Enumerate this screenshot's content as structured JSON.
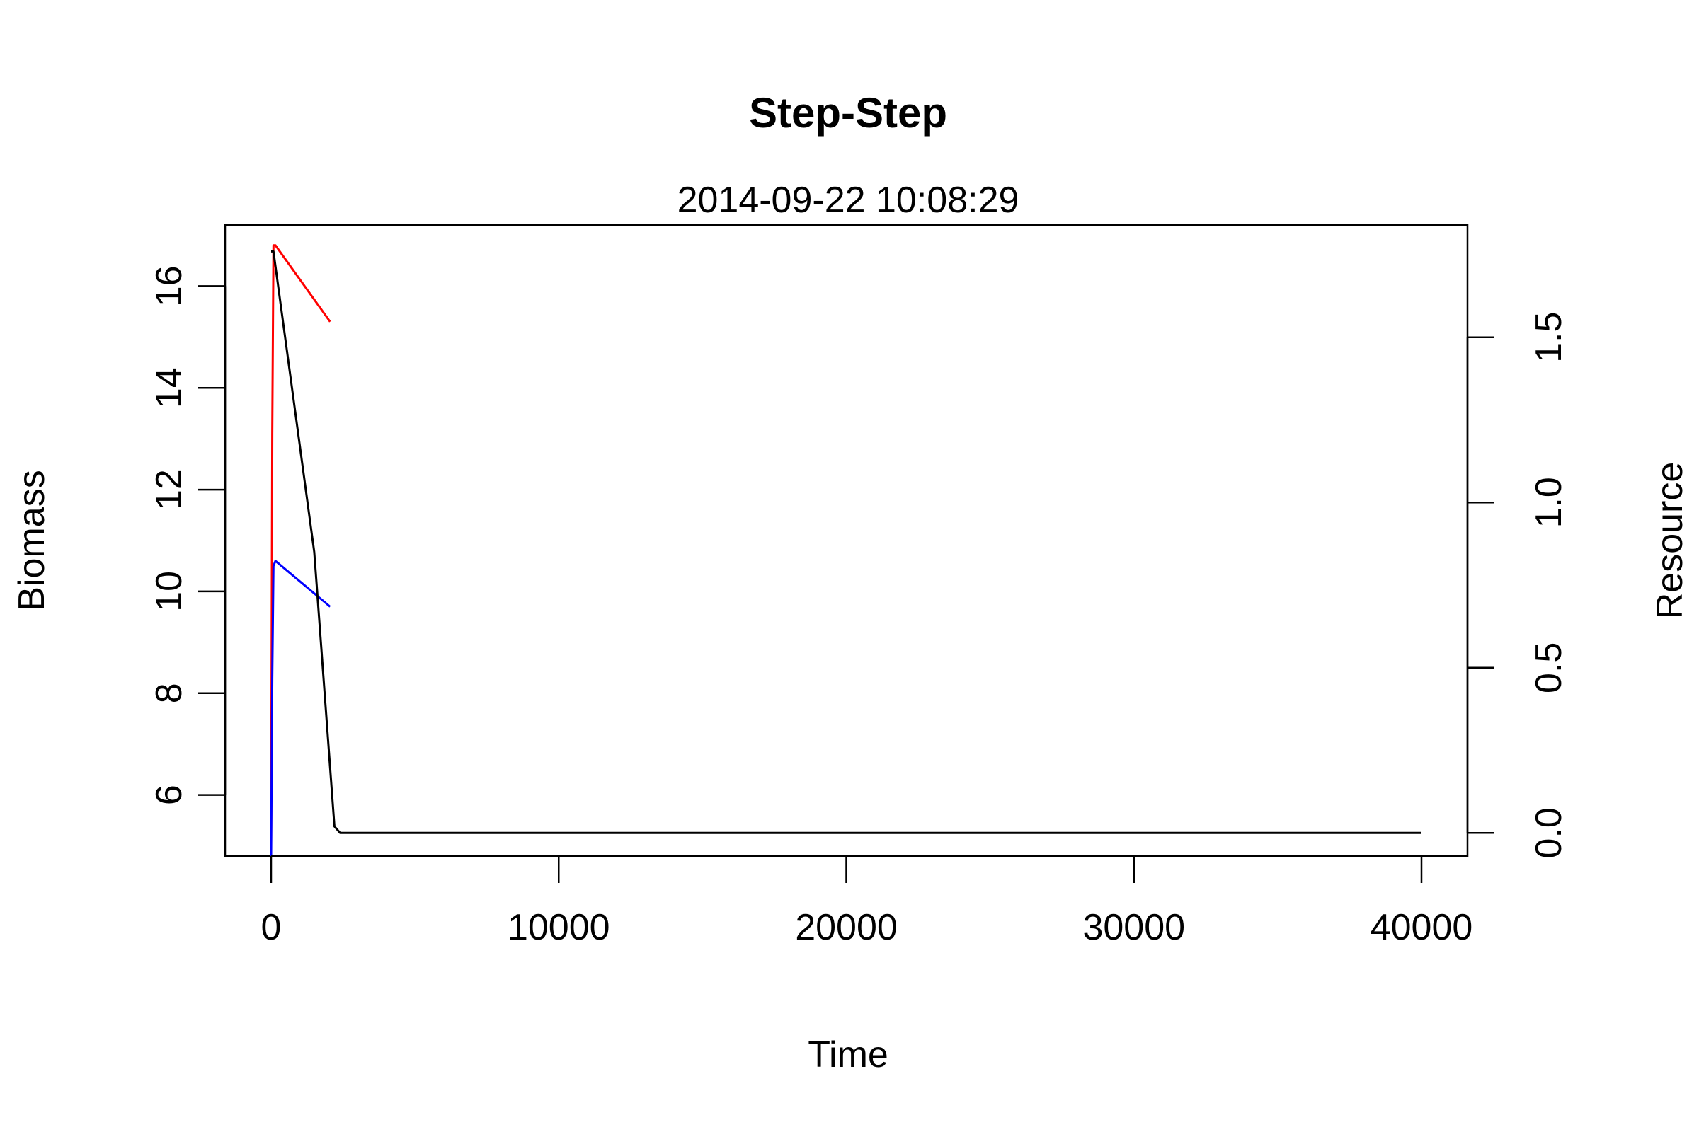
{
  "chart_data": {
    "type": "line",
    "title": "Step-Step",
    "subtitle": "2014-09-22 10:08:29",
    "xlabel": "Time",
    "ylabel": "Biomass",
    "y2label": "Resource",
    "xlim": [
      -1600,
      41600
    ],
    "ylim": [
      4.8,
      17.2
    ],
    "y2lim": [
      -0.07,
      1.84
    ],
    "x_ticks": [
      0,
      10000,
      20000,
      30000,
      40000
    ],
    "y_ticks": [
      6,
      8,
      10,
      12,
      14,
      16
    ],
    "y2_ticks": [
      0.0,
      0.5,
      1.0,
      1.5
    ],
    "x_tick_labels": [
      "0",
      "10000",
      "20000",
      "30000",
      "40000"
    ],
    "y_tick_labels": [
      "6",
      "8",
      "10",
      "12",
      "14",
      "16"
    ],
    "y2_tick_labels": [
      "0.0",
      "0.5",
      "1.0",
      "1.5"
    ],
    "grid": false,
    "series": [
      {
        "axis": "left",
        "color": "#ff0000",
        "x": [
          0,
          40,
          80,
          150,
          2050
        ],
        "y": [
          5.0,
          13.1,
          16.8,
          16.8,
          15.3
        ]
      },
      {
        "axis": "left",
        "color": "#0000ff",
        "x": [
          0,
          40,
          80,
          150,
          2050
        ],
        "y": [
          4.8,
          8.3,
          10.5,
          10.6,
          9.7
        ]
      },
      {
        "axis": "right",
        "color": "#000000",
        "x": [
          0,
          80,
          1500,
          2200,
          2400,
          40000
        ],
        "y": [
          1.76,
          1.76,
          0.85,
          0.02,
          0.0,
          0.0
        ]
      }
    ]
  }
}
